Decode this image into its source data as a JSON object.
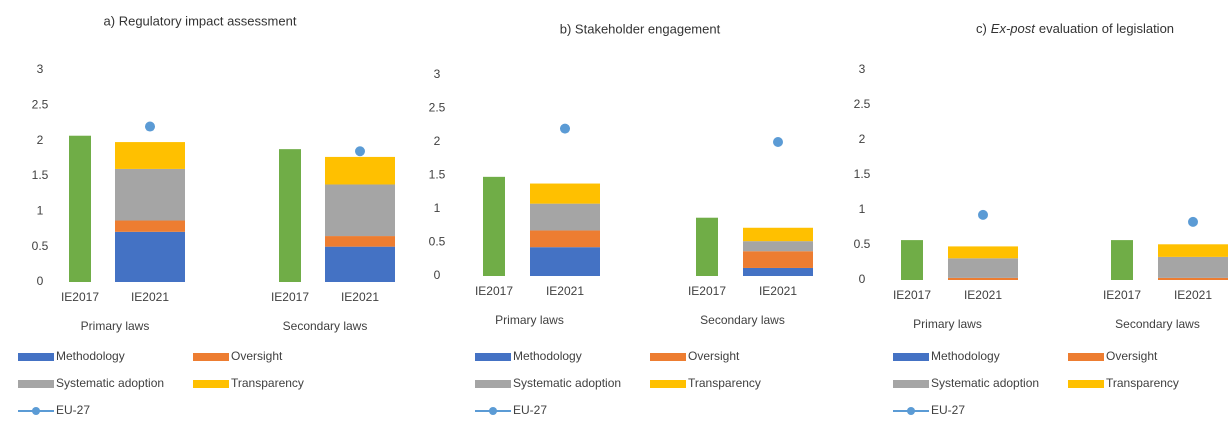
{
  "chart_data": [
    {
      "type": "bar",
      "title": "a) Regulatory impact assessment",
      "groups": [
        "Primary laws",
        "Secondary laws"
      ],
      "categories": [
        "IE2017",
        "IE2021"
      ],
      "ylim": [
        0,
        3
      ],
      "yticks": [
        0,
        0.5,
        1,
        1.5,
        2,
        2.5,
        3
      ],
      "baseline": {
        "color": "#70ad47",
        "values": [
          2.07,
          1.88
        ]
      },
      "series": [
        {
          "name": "Methodology",
          "color": "#4472c4",
          "values": [
            0.71,
            0.5
          ]
        },
        {
          "name": "Oversight",
          "color": "#ed7d31",
          "values": [
            0.16,
            0.15
          ]
        },
        {
          "name": "Systematic adoption",
          "color": "#a5a5a5",
          "values": [
            0.73,
            0.73
          ]
        },
        {
          "name": "Transparency",
          "color": "#ffc000",
          "values": [
            0.38,
            0.39
          ]
        }
      ],
      "marker": {
        "name": "EU-27",
        "color": "#5b9bd5",
        "values": [
          2.2,
          1.85
        ]
      }
    },
    {
      "type": "bar",
      "title": "b) Stakeholder engagement",
      "groups": [
        "Primary laws",
        "Secondary laws"
      ],
      "categories": [
        "IE2017",
        "IE2021"
      ],
      "ylim": [
        0,
        3
      ],
      "yticks": [
        0,
        0.5,
        1,
        1.5,
        2,
        2.5,
        3
      ],
      "baseline": {
        "color": "#70ad47",
        "values": [
          1.48,
          0.87
        ]
      },
      "series": [
        {
          "name": "Methodology",
          "color": "#4472c4",
          "values": [
            0.43,
            0.12
          ]
        },
        {
          "name": "Oversight",
          "color": "#ed7d31",
          "values": [
            0.25,
            0.25
          ]
        },
        {
          "name": "Systematic adoption",
          "color": "#a5a5a5",
          "values": [
            0.4,
            0.15
          ]
        },
        {
          "name": "Transparency",
          "color": "#ffc000",
          "values": [
            0.3,
            0.2
          ]
        }
      ],
      "marker": {
        "name": "EU-27",
        "color": "#5b9bd5",
        "values": [
          2.2,
          2.0
        ]
      }
    },
    {
      "type": "bar",
      "title": {
        "prefix": "c)",
        "emphasis": "Ex-post",
        "rest": "evaluation of legislation"
      },
      "groups": [
        "Primary laws",
        "Secondary laws"
      ],
      "categories": [
        "IE2017",
        "IE2021"
      ],
      "ylim": [
        0,
        3
      ],
      "yticks": [
        0,
        0.5,
        1,
        1.5,
        2,
        2.5,
        3
      ],
      "baseline": {
        "color": "#70ad47",
        "values": [
          0.57,
          0.57
        ]
      },
      "series": [
        {
          "name": "Methodology",
          "color": "#4472c4",
          "values": [
            0,
            0
          ]
        },
        {
          "name": "Oversight",
          "color": "#ed7d31",
          "values": [
            0.03,
            0.03
          ]
        },
        {
          "name": "Systematic adoption",
          "color": "#a5a5a5",
          "values": [
            0.28,
            0.3
          ]
        },
        {
          "name": "Transparency",
          "color": "#ffc000",
          "values": [
            0.17,
            0.18
          ]
        }
      ],
      "marker": {
        "name": "EU-27",
        "color": "#5b9bd5",
        "values": [
          0.93,
          0.83
        ]
      }
    }
  ]
}
